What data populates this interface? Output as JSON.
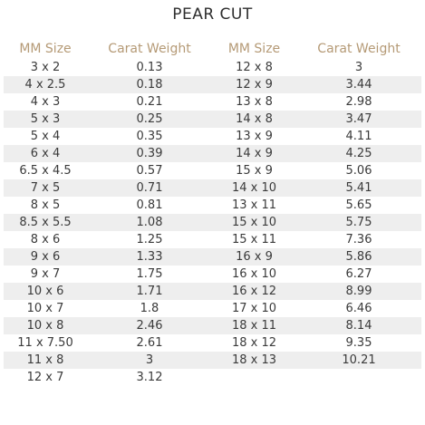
{
  "title": "PEAR CUT",
  "headers": [
    "MM Size",
    "Carat Weight",
    "MM Size",
    "Carat Weight"
  ],
  "rows": [
    [
      "3 x 2",
      "0.13",
      "12 x 8",
      "3"
    ],
    [
      "4 x 2.5",
      "0.18",
      "12 x 9",
      "3.44"
    ],
    [
      "4 x 3",
      "0.21",
      "13 x 8",
      "2.98"
    ],
    [
      "5 x 3",
      "0.25",
      "14 x 8",
      "3.47"
    ],
    [
      "5 x 4",
      "0.35",
      "13 x 9",
      "4.11"
    ],
    [
      "6 x 4",
      "0.39",
      "14 x 9",
      "4.25"
    ],
    [
      "6.5 x 4.5",
      "0.57",
      "15 x 9",
      "5.06"
    ],
    [
      "7 x 5",
      "0.71",
      "14 x 10",
      "5.41"
    ],
    [
      "8 x 5",
      "0.81",
      "13 x 11",
      "5.65"
    ],
    [
      "8.5 x 5.5",
      "1.08",
      "15 x 10",
      "5.75"
    ],
    [
      "8 x 6",
      "1.25",
      "15 x 11",
      "7.36"
    ],
    [
      "9 x 6",
      "1.33",
      "16 x 9",
      "5.86"
    ],
    [
      "9 x 7",
      "1.75",
      "16 x 10",
      "6.27"
    ],
    [
      "10 x 6",
      "1.71",
      "16 x 12",
      "8.99"
    ],
    [
      "10 x 7",
      "1.8",
      "17 x 10",
      "6.46"
    ],
    [
      "10 x 8",
      "2.46",
      "18 x 11",
      "8.14"
    ],
    [
      "11 x 7.50",
      "2.61",
      "18 x 12",
      "9.35"
    ],
    [
      "11 x 8",
      "3",
      "18 x 13",
      "10.21"
    ],
    [
      "12 x 7",
      "3.12",
      "",
      ""
    ]
  ],
  "colors": {
    "header_text": "#b59a76",
    "body_text": "#3a3a3a",
    "stripe": "#eeeeee"
  }
}
